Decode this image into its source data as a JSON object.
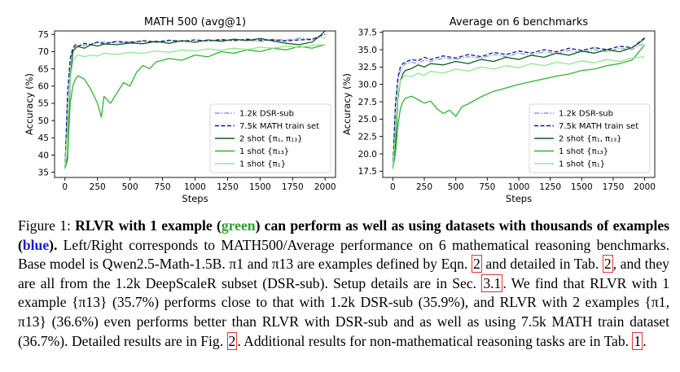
{
  "figure": {
    "palette": {
      "dsr_sub": "#7b9fd9",
      "math_train": "#15158a",
      "two_shot": "#0b5e1a",
      "one_shot_13": "#2cb431",
      "one_shot_1": "#8fe88c"
    }
  },
  "chart_data": [
    {
      "type": "line",
      "title": "MATH 500 (avg@1)",
      "xlabel": "Steps",
      "ylabel": "Accuracy (%)",
      "xlim": [
        -80,
        2080
      ],
      "ylim": [
        33.5,
        76
      ],
      "xticks": [
        0,
        250,
        500,
        750,
        1000,
        1250,
        1500,
        1750,
        2000
      ],
      "xtick_labels": [
        "0",
        "250",
        "500",
        "750",
        "1000",
        "1250",
        "1500",
        "1750",
        "2000"
      ],
      "yticks": [
        35,
        40,
        45,
        50,
        55,
        60,
        65,
        70,
        75
      ],
      "ytick_labels": [
        "35",
        "40",
        "45",
        "50",
        "55",
        "60",
        "65",
        "70",
        "75"
      ],
      "legend": "lower-right",
      "series": [
        {
          "name": "1.2k DSR-sub",
          "style": "dashdot",
          "color": "#7b9fd9",
          "x": [
            0,
            20,
            40,
            60,
            80,
            100,
            150,
            200,
            250,
            300,
            400,
            500,
            600,
            700,
            800,
            900,
            1000,
            1100,
            1200,
            1300,
            1400,
            1500,
            1600,
            1700,
            1800,
            1900,
            1950,
            2000
          ],
          "y": [
            36,
            55,
            67,
            70.5,
            71.5,
            72,
            71.8,
            72.3,
            72.6,
            72.8,
            72.5,
            72.9,
            73,
            72.6,
            73.2,
            73,
            72.8,
            73.3,
            73.1,
            73.5,
            73.3,
            72.9,
            73.6,
            73.3,
            73.9,
            73.6,
            74.2,
            73.9
          ]
        },
        {
          "name": "7.5k MATH train set",
          "style": "dashed",
          "color": "#15158a",
          "x": [
            0,
            20,
            40,
            60,
            80,
            100,
            150,
            200,
            250,
            300,
            400,
            500,
            600,
            700,
            800,
            900,
            1000,
            1100,
            1200,
            1300,
            1400,
            1500,
            1600,
            1700,
            1800,
            1900,
            1950,
            2000
          ],
          "y": [
            36,
            58,
            68,
            71,
            72,
            71.5,
            72.4,
            72,
            72.8,
            72.3,
            73,
            72.6,
            73.2,
            72.8,
            73.3,
            73,
            73.4,
            73.1,
            73.5,
            73.2,
            73.6,
            73.3,
            73.4,
            73.1,
            73.4,
            73.5,
            74.4,
            75
          ]
        },
        {
          "name": "2 shot {π1, π13}",
          "style": "solid",
          "color": "#0b5e1a",
          "x": [
            0,
            20,
            40,
            60,
            80,
            100,
            150,
            200,
            250,
            300,
            400,
            500,
            600,
            700,
            800,
            900,
            1000,
            1100,
            1200,
            1300,
            1400,
            1500,
            1600,
            1700,
            1800,
            1900,
            1950,
            2000
          ],
          "y": [
            36,
            39,
            62,
            70,
            71,
            71.5,
            71,
            72,
            71.6,
            72.2,
            72,
            72.5,
            72.3,
            73,
            72.4,
            73.2,
            72.7,
            73.4,
            73,
            73.6,
            73.2,
            73.8,
            73.1,
            72.4,
            72,
            72.8,
            74.2,
            76
          ]
        },
        {
          "name": "1 shot {π13}",
          "style": "solid",
          "color": "#2cb431",
          "x": [
            0,
            20,
            40,
            60,
            80,
            100,
            150,
            200,
            250,
            280,
            300,
            350,
            400,
            450,
            500,
            550,
            600,
            650,
            700,
            800,
            900,
            1000,
            1100,
            1200,
            1300,
            1400,
            1500,
            1600,
            1700,
            1800,
            1900,
            2000
          ],
          "y": [
            36,
            40,
            55,
            60,
            62,
            63,
            62,
            59,
            55,
            51,
            57,
            55,
            58,
            61,
            60,
            64,
            66,
            65,
            67,
            68,
            67.5,
            69,
            68.5,
            70,
            69.5,
            70.5,
            70,
            71,
            70.5,
            71.5,
            71,
            72
          ]
        },
        {
          "name": "1 shot {π1}",
          "style": "solid",
          "color": "#8fe88c",
          "x": [
            0,
            20,
            40,
            60,
            80,
            100,
            150,
            200,
            250,
            300,
            400,
            500,
            600,
            700,
            800,
            900,
            1000,
            1100,
            1200,
            1300,
            1400,
            1500,
            1600,
            1700,
            1800,
            1900,
            2000
          ],
          "y": [
            36,
            48,
            62,
            67,
            68.5,
            69,
            68.5,
            69,
            68.7,
            69.5,
            69.2,
            69.8,
            69.5,
            70.2,
            69.8,
            70.5,
            70.2,
            70.8,
            70.4,
            71,
            70.6,
            71.3,
            71,
            71.6,
            71.2,
            71.8,
            72
          ]
        }
      ]
    },
    {
      "type": "line",
      "title": "Average on 6 benchmarks",
      "xlabel": "Steps",
      "ylabel": "Accuracy (%)",
      "xlim": [
        -80,
        2080
      ],
      "ylim": [
        16.6,
        37.7
      ],
      "xticks": [
        0,
        250,
        500,
        750,
        1000,
        1250,
        1500,
        1750,
        2000
      ],
      "xtick_labels": [
        "0",
        "250",
        "500",
        "750",
        "1000",
        "1250",
        "1500",
        "1750",
        "2000"
      ],
      "yticks": [
        17.5,
        20.0,
        22.5,
        25.0,
        27.5,
        30.0,
        32.5,
        35.0,
        37.5
      ],
      "ytick_labels": [
        "17.5",
        "20.0",
        "22.5",
        "25.0",
        "27.5",
        "30.0",
        "32.5",
        "35.0",
        "37.5"
      ],
      "legend": "lower-right",
      "series": [
        {
          "name": "1.2k DSR-sub",
          "style": "dashdot",
          "color": "#7b9fd9",
          "x": [
            0,
            20,
            40,
            60,
            80,
            100,
            150,
            200,
            250,
            300,
            400,
            500,
            600,
            700,
            800,
            900,
            1000,
            1100,
            1200,
            1300,
            1400,
            1500,
            1600,
            1700,
            1800,
            1900,
            1950,
            2000
          ],
          "y": [
            18,
            26,
            30.5,
            32,
            32.5,
            33,
            33.2,
            33,
            33.5,
            33.3,
            33.8,
            33.6,
            34,
            33.8,
            34.3,
            34,
            34.5,
            34.2,
            34.7,
            34.4,
            34.9,
            34.6,
            35,
            34.7,
            35.2,
            35,
            35.6,
            35.9
          ]
        },
        {
          "name": "7.5k MATH train set",
          "style": "dashed",
          "color": "#15158a",
          "x": [
            0,
            20,
            40,
            60,
            80,
            100,
            150,
            200,
            250,
            300,
            400,
            500,
            600,
            700,
            800,
            900,
            1000,
            1100,
            1200,
            1300,
            1400,
            1500,
            1600,
            1700,
            1800,
            1900,
            1950,
            2000
          ],
          "y": [
            18,
            27,
            31,
            32.5,
            33,
            33.2,
            33.6,
            33.4,
            33.9,
            33.6,
            34.1,
            33.8,
            34.3,
            34,
            34.6,
            34.3,
            34.8,
            34.5,
            35,
            34.7,
            35.2,
            34.9,
            35.3,
            35,
            35.5,
            35.3,
            36,
            36.7
          ]
        },
        {
          "name": "2 shot {π1, π13}",
          "style": "solid",
          "color": "#0b5e1a",
          "x": [
            0,
            20,
            40,
            60,
            80,
            100,
            150,
            200,
            250,
            300,
            400,
            500,
            600,
            700,
            800,
            900,
            1000,
            1100,
            1200,
            1300,
            1400,
            1500,
            1600,
            1700,
            1800,
            1900,
            1950,
            2000
          ],
          "y": [
            18,
            21,
            28,
            30.5,
            31.5,
            32,
            32.3,
            32.8,
            32.5,
            33,
            32.8,
            33.3,
            33,
            33.6,
            33.3,
            33.9,
            33.6,
            34.2,
            33.9,
            34.5,
            34.2,
            34.8,
            34.5,
            35,
            34.7,
            35.3,
            35.9,
            36.6
          ]
        },
        {
          "name": "1 shot {π13}",
          "style": "solid",
          "color": "#2cb431",
          "x": [
            0,
            20,
            40,
            60,
            80,
            100,
            150,
            200,
            250,
            300,
            350,
            400,
            450,
            500,
            550,
            600,
            700,
            800,
            900,
            1000,
            1100,
            1200,
            1300,
            1400,
            1500,
            1600,
            1700,
            1800,
            1900,
            2000
          ],
          "y": [
            17.8,
            20,
            24,
            26.5,
            27.5,
            28,
            28.3,
            27.8,
            27.3,
            27.6,
            26.5,
            25.8,
            26.3,
            25.4,
            26.8,
            27.2,
            28.2,
            29,
            29.5,
            30,
            30.4,
            30.8,
            31.2,
            31.5,
            32,
            32.2,
            32.7,
            33,
            33.5,
            35.7
          ]
        },
        {
          "name": "1 shot {π1}",
          "style": "solid",
          "color": "#8fe88c",
          "x": [
            0,
            20,
            40,
            60,
            80,
            100,
            150,
            200,
            250,
            300,
            400,
            500,
            600,
            700,
            800,
            900,
            1000,
            1100,
            1200,
            1300,
            1400,
            1500,
            1600,
            1700,
            1800,
            1900,
            2000
          ],
          "y": [
            17.8,
            23,
            28.5,
            30.5,
            31,
            31.3,
            31.1,
            31.6,
            31.3,
            31.9,
            31.6,
            32.2,
            31.9,
            32.5,
            32.2,
            32.7,
            32.4,
            33,
            32.7,
            33.2,
            32.9,
            33.4,
            33.1,
            33.6,
            33.3,
            33.8,
            34
          ]
        }
      ]
    }
  ],
  "caption": {
    "label": "Figure 1:",
    "bold_1": "RLVR with 1 example (",
    "bold_green": "green",
    "bold_2": ") can perform as well as using datasets with thousands of examples (",
    "bold_blue": "blue",
    "bold_3": ").",
    "text_1": "Left/Right corresponds to MATH500/Average performance on 6 mathematical reasoning benchmarks. Base model is Qwen2.5-Math-1.5B. π1 and π13 are examples defined by Eqn.",
    "ref_eqn": "2",
    "text_2": "and detailed in Tab.",
    "ref_tab": "2",
    "text_3": ", and they are all from the 1.2k DeepScaleR subset (DSR-sub). Setup details are in Sec.",
    "ref_sec": "3.1",
    "text_4": ". We find that RLVR with 1 example {π13} (35.7%) performs close to that with 1.2k DSR-sub (35.9%), and RLVR with 2 examples {π1, π13} (36.6%) even performs better than RLVR with DSR-sub and as well as using 7.5k MATH train dataset (36.7%). Detailed results are in Fig.",
    "ref_fig": "2",
    "text_5": ". Additional results for non-mathematical reasoning tasks are in Tab.",
    "ref_tab2": "1",
    "text_6": "."
  }
}
